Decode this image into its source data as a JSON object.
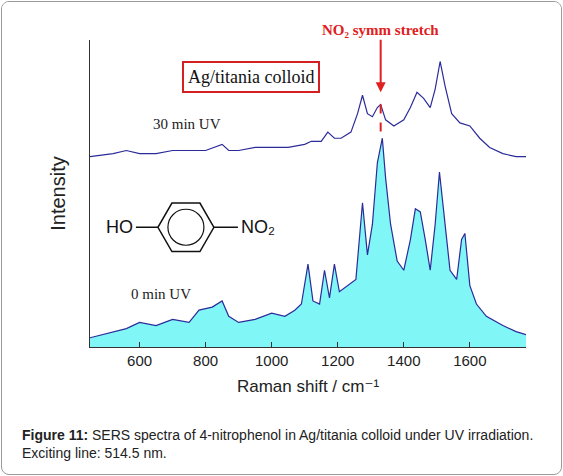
{
  "chart_data": {
    "type": "line",
    "x_label": "Raman shift / cm⁻¹",
    "y_label": "Intensity",
    "xlim": [
      450,
      1770
    ],
    "xticks": [
      600,
      800,
      1000,
      1200,
      1400,
      1600
    ],
    "ylim": [
      0,
      100
    ],
    "tick_labels": "x",
    "grid": false,
    "series": [
      {
        "name": "30 min UV",
        "type": "line",
        "color": "#2b2b9a",
        "x": [
          450,
          520,
          560,
          600,
          650,
          700,
          750,
          800,
          850,
          870,
          900,
          950,
          1000,
          1050,
          1100,
          1120,
          1150,
          1170,
          1190,
          1210,
          1240,
          1260,
          1275,
          1290,
          1305,
          1320,
          1330,
          1345,
          1370,
          1400,
          1420,
          1440,
          1460,
          1480,
          1495,
          1510,
          1525,
          1545,
          1570,
          1600,
          1630,
          1660,
          1700,
          1740,
          1770
        ],
        "values": [
          62,
          63,
          64,
          63,
          63,
          64,
          64,
          64,
          66,
          64,
          64,
          65,
          65,
          65,
          66,
          67,
          67,
          70,
          68,
          68,
          70,
          76,
          82,
          76,
          75,
          78,
          79,
          74,
          72,
          74,
          78,
          83,
          81,
          78,
          84,
          93,
          85,
          76,
          73,
          72,
          68,
          65,
          63,
          62,
          62
        ]
      },
      {
        "name": "0 min UV",
        "type": "area",
        "color": "#2b2b9a",
        "x": [
          450,
          520,
          560,
          600,
          650,
          700,
          750,
          780,
          820,
          850,
          870,
          900,
          950,
          1000,
          1040,
          1070,
          1090,
          1110,
          1125,
          1145,
          1160,
          1175,
          1190,
          1205,
          1230,
          1255,
          1275,
          1290,
          1305,
          1320,
          1335,
          1345,
          1360,
          1380,
          1400,
          1420,
          1435,
          1450,
          1465,
          1480,
          1495,
          1508,
          1520,
          1540,
          1560,
          1575,
          1585,
          1600,
          1620,
          1650,
          1700,
          1740,
          1770
        ],
        "values": [
          3,
          5,
          6,
          8,
          7,
          9,
          8,
          12,
          13,
          15,
          10,
          8,
          9,
          11,
          10,
          12,
          14,
          27,
          15,
          14,
          25,
          16,
          27,
          18,
          20,
          22,
          47,
          30,
          40,
          60,
          68,
          55,
          40,
          28,
          25,
          35,
          45,
          44,
          35,
          25,
          40,
          57,
          45,
          25,
          22,
          35,
          37,
          20,
          14,
          10,
          7,
          5,
          4
        ]
      }
    ],
    "annotations": [
      {
        "text": "Ag/titania colloid"
      },
      {
        "text": "NO₂ symm stretch",
        "x": 1330
      }
    ],
    "structure_labels": [
      "HO",
      "NO₂"
    ]
  },
  "caption": {
    "label": "Figure 11:",
    "text": "SERS spectra of 4-nitrophenol in Ag/titania colloid under UV irradiation. Exciting line: 514.5 nm."
  }
}
